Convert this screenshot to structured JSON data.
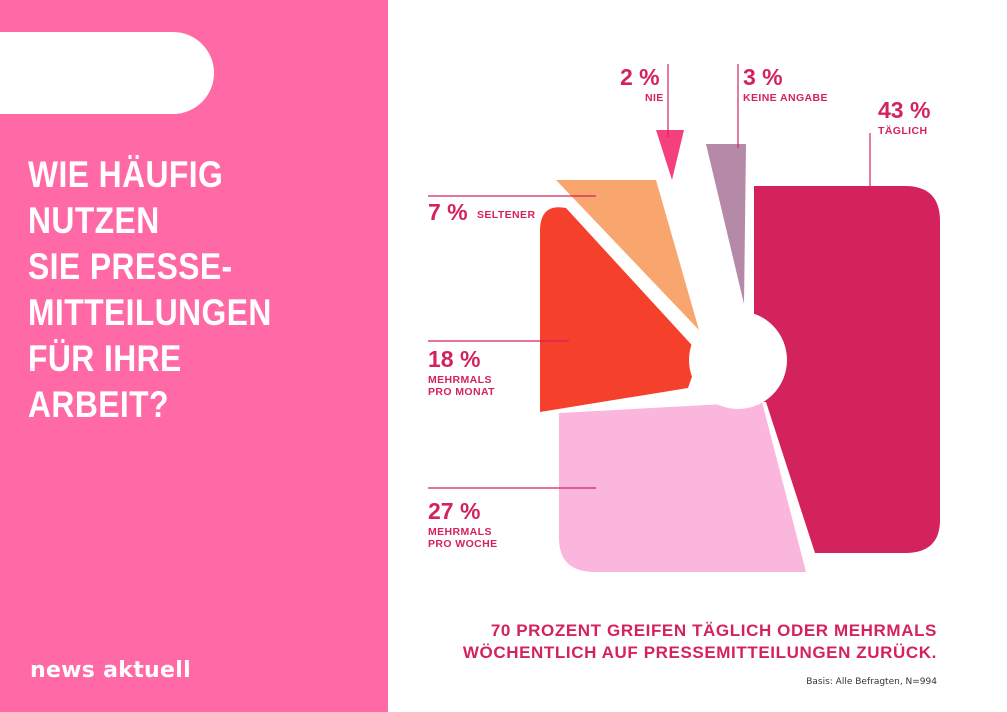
{
  "question_lines": [
    "WIE HÄUFIG",
    "NUTZEN",
    "SIE PRESSE-",
    "MITTEILUNGEN",
    "FÜR IHRE",
    "ARBEIT?"
  ],
  "brand": "news aktuell",
  "conclusion_lines": [
    "70 PROZENT GREIFEN TÄGLICH ODER MEHRMALS",
    "WÖCHENTLICH AUF PRESSEMITTEILUNGEN ZURÜCK."
  ],
  "basis": "Basis: Alle Befragten, N=994",
  "colors": {
    "panel": "#ff6aa6",
    "text_accent": "#d4235c"
  },
  "chart_data": {
    "type": "pie",
    "unit": "%",
    "slices": [
      {
        "pct_label": "43 %",
        "value": 43,
        "label_lines": [
          "TÄGLICH"
        ],
        "color": "#d4235c"
      },
      {
        "pct_label": "27 %",
        "value": 27,
        "label_lines": [
          "MEHRMALS",
          "PRO WOCHE"
        ],
        "color": "#fbb6de"
      },
      {
        "pct_label": "18 %",
        "value": 18,
        "label_lines": [
          "MEHRMALS",
          "PRO MONAT"
        ],
        "color": "#f5402c"
      },
      {
        "pct_label": "7 %",
        "value": 7,
        "label_lines": [
          "SELTENER"
        ],
        "color": "#f9a56e"
      },
      {
        "pct_label": "2 %",
        "value": 2,
        "label_lines": [
          "NIE"
        ],
        "color": "#f5407e"
      },
      {
        "pct_label": "3 %",
        "value": 3,
        "label_lines": [
          "KEINE ANGABE"
        ],
        "color": "#b48aa8"
      }
    ]
  }
}
